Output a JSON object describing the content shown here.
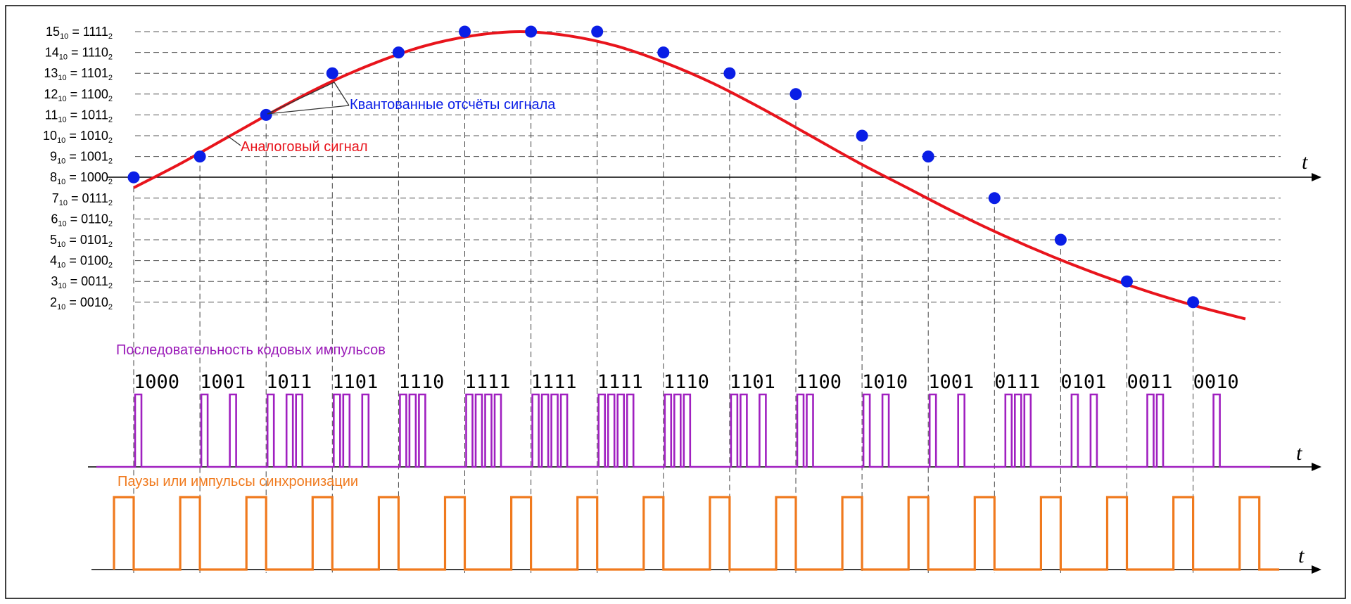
{
  "chart_data": [
    {
      "type": "line",
      "subtype": "sampled-signal",
      "title": "",
      "axis_label": "t",
      "levels": [
        {
          "value": 15,
          "dec": "15",
          "bin": "1111"
        },
        {
          "value": 14,
          "dec": "14",
          "bin": "1110"
        },
        {
          "value": 13,
          "dec": "13",
          "bin": "1101"
        },
        {
          "value": 12,
          "dec": "12",
          "bin": "1100"
        },
        {
          "value": 11,
          "dec": "11",
          "bin": "1011"
        },
        {
          "value": 10,
          "dec": "10",
          "bin": "1010"
        },
        {
          "value": 9,
          "dec": "9",
          "bin": "1001"
        },
        {
          "value": 8,
          "dec": "8",
          "bin": "1000"
        },
        {
          "value": 7,
          "dec": "7",
          "bin": "0111"
        },
        {
          "value": 6,
          "dec": "6",
          "bin": "0110"
        },
        {
          "value": 5,
          "dec": "5",
          "bin": "0101"
        },
        {
          "value": 4,
          "dec": "4",
          "bin": "0100"
        },
        {
          "value": 3,
          "dec": "3",
          "bin": "0011"
        },
        {
          "value": 2,
          "dec": "2",
          "bin": "0010"
        }
      ],
      "sub_dec": "10",
      "sub_bin": "2",
      "series": [
        {
          "name": "Аналоговый сигнал",
          "color": "#e8141c",
          "values": [
            7.5,
            8.7,
            10.0,
            11.3,
            12.5,
            13.5,
            14.3,
            14.8,
            15.0,
            14.8,
            14.3,
            13.5,
            12.5,
            11.3,
            10.0,
            8.7,
            7.5,
            6.3,
            5.2,
            4.2,
            3.3,
            2.5,
            1.8,
            1.2
          ]
        },
        {
          "name": "Квантованные отсчёты сигнала",
          "color": "#0a1ee6",
          "values": [
            8,
            9,
            11,
            13,
            14,
            15,
            15,
            15,
            14,
            13,
            12,
            10,
            9,
            7,
            5,
            3,
            2
          ]
        }
      ],
      "annotations": [
        {
          "text": "Квантованные отсчёты сигнала",
          "color": "#0a1ee6"
        },
        {
          "text": "Аналоговый сигнал",
          "color": "#e8141c"
        }
      ]
    },
    {
      "type": "line",
      "subtype": "pulse-train",
      "title": "Последовательность кодовых импульсов",
      "title_color": "#9a1ab8",
      "axis_label": "t",
      "codes": [
        "1000",
        "1001",
        "1011",
        "1101",
        "1110",
        "1111",
        "1111",
        "1111",
        "1110",
        "1101",
        "1100",
        "1010",
        "1001",
        "0111",
        "0101",
        "0011",
        "0010"
      ]
    },
    {
      "type": "line",
      "subtype": "pulse-train",
      "title": "Паузы или импульсы синхронизации",
      "title_color": "#f07a1e",
      "axis_label": "t",
      "sync_pulses": 18
    }
  ]
}
